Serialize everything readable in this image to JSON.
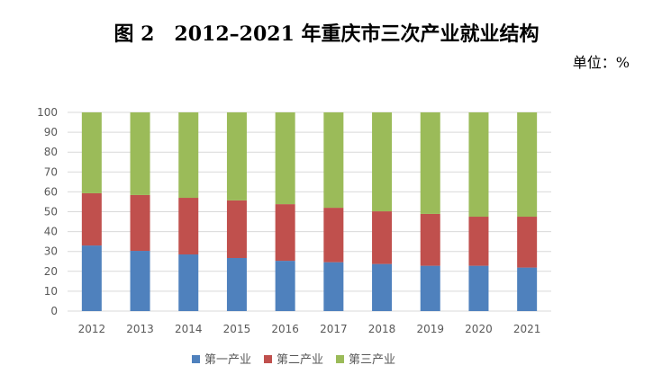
{
  "chart_data": {
    "type": "bar",
    "stacked": true,
    "title": "图 2　2012–2021 年重庆市三次产业就业结构",
    "unit_label": "单位：%",
    "categories": [
      "2012",
      "2013",
      "2014",
      "2015",
      "2016",
      "2017",
      "2018",
      "2019",
      "2020",
      "2021"
    ],
    "series": [
      {
        "name": "第一产业",
        "color": "#4F81BD",
        "values": [
          33.0,
          30.3,
          28.5,
          26.7,
          25.3,
          24.6,
          23.7,
          22.8,
          22.8,
          21.9
        ]
      },
      {
        "name": "第二产业",
        "color": "#C0504D",
        "values": [
          26.3,
          28.1,
          28.5,
          29.0,
          28.5,
          27.4,
          26.5,
          26.1,
          24.7,
          25.6
        ]
      },
      {
        "name": "第三产业",
        "color": "#9BBB59",
        "values": [
          40.7,
          41.6,
          43.0,
          44.3,
          46.2,
          48.0,
          49.8,
          51.1,
          52.5,
          52.5
        ]
      }
    ],
    "ylim": [
      0,
      100
    ],
    "yticks": [
      0,
      10,
      20,
      30,
      40,
      50,
      60,
      70,
      80,
      90,
      100
    ],
    "grid": true,
    "legend_position": "bottom"
  }
}
